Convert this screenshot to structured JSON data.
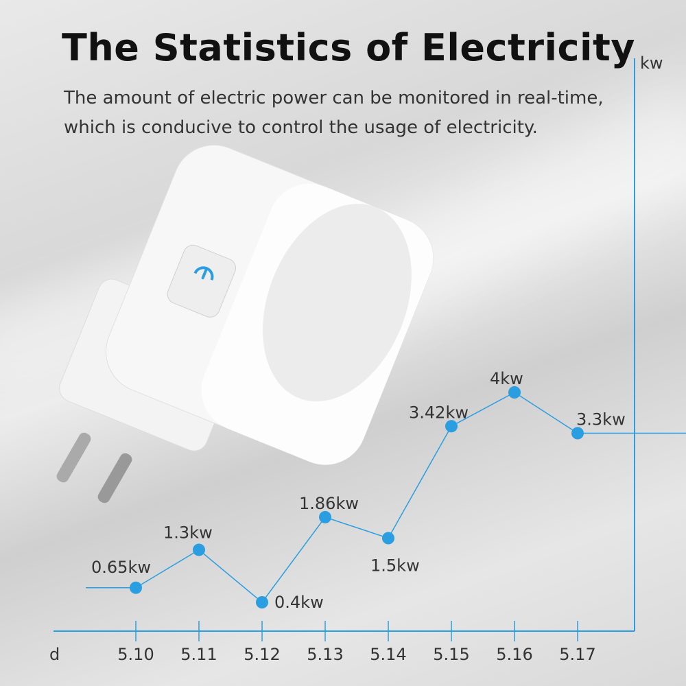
{
  "title": "The Statistics of Electricity",
  "subtitle_line1": "The amount of electric power can be monitored in real-time,",
  "subtitle_line2": "which is conducive to control the usage of electricity.",
  "icon": "power-icon",
  "chart_data": {
    "type": "line",
    "xlabel": "d",
    "ylabel": "kw",
    "categories": [
      "5.10",
      "5.11",
      "5.12",
      "5.13",
      "5.14",
      "5.15",
      "5.16",
      "5.17"
    ],
    "values": [
      0.65,
      1.3,
      0.4,
      1.86,
      1.5,
      3.42,
      4,
      3.3
    ],
    "data_labels": [
      "0.65kw",
      "1.3kw",
      "0.4kw",
      "1.86kw",
      "1.5kw",
      "3.42kw",
      "4kw",
      "3.3kw"
    ],
    "color": "#2a9ee0",
    "grid": false
  }
}
